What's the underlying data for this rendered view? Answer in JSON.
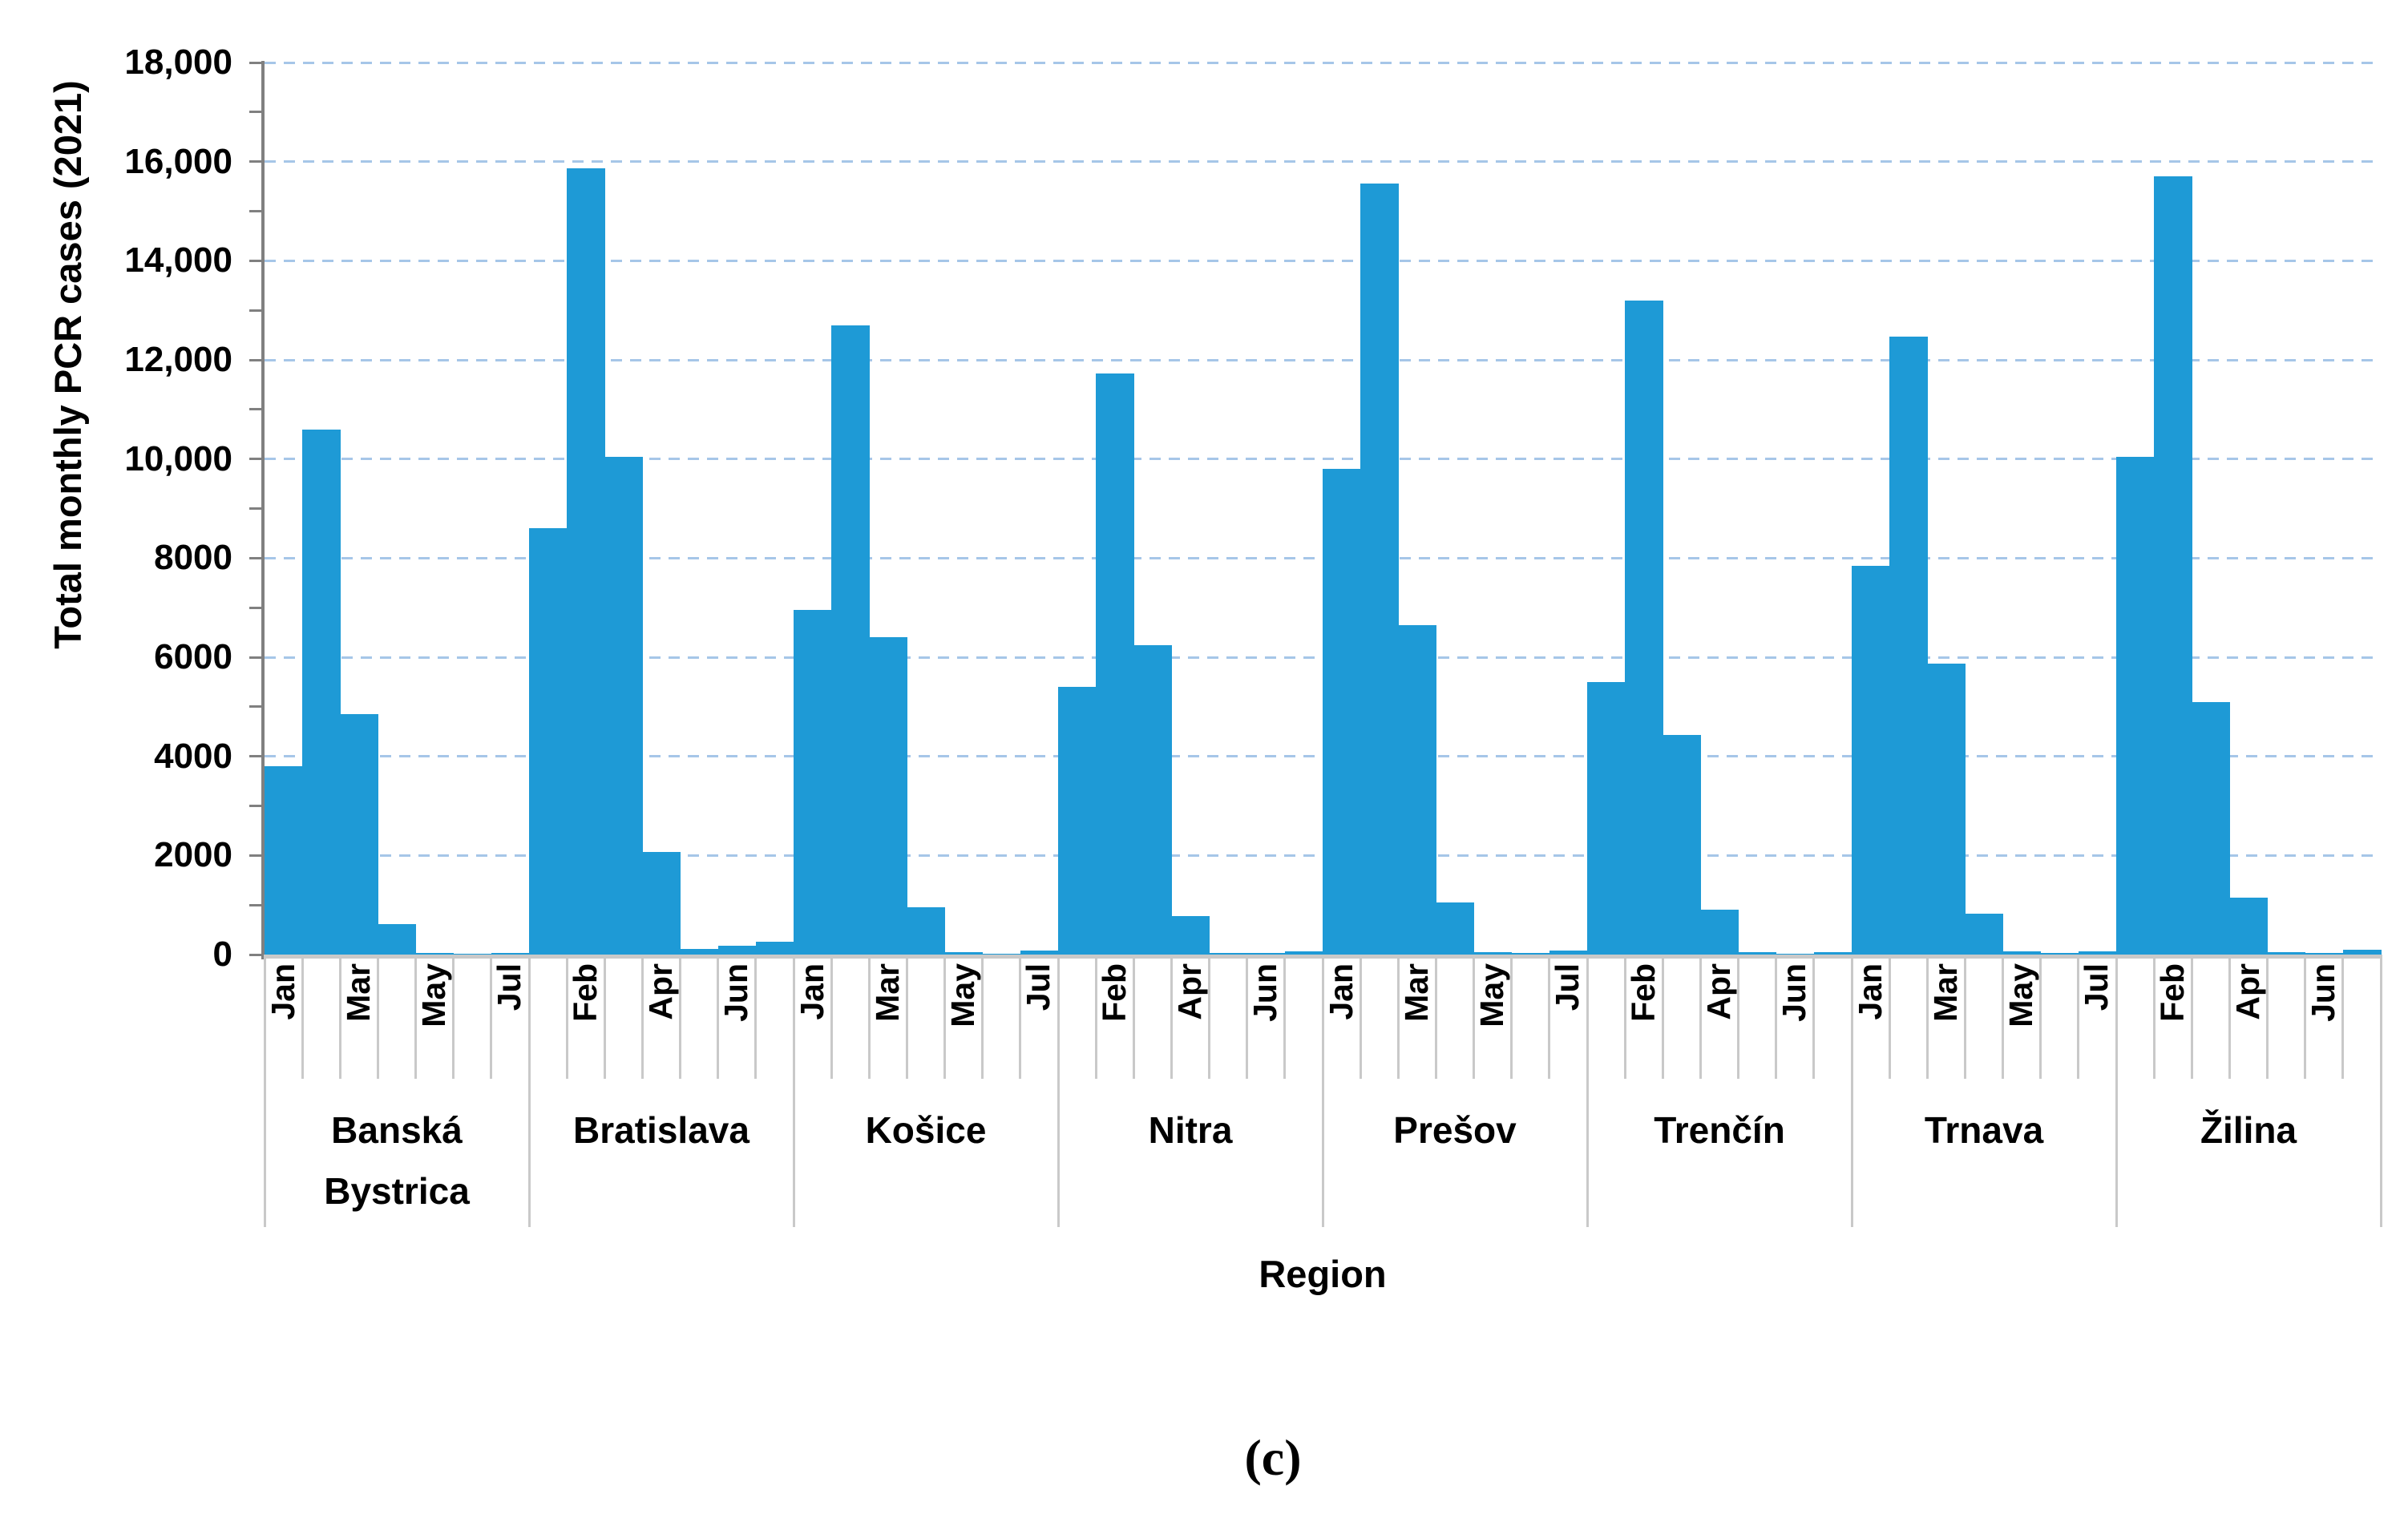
{
  "chart_data": {
    "type": "bar",
    "title": "",
    "ylabel": "Total monthly PCR cases (2021)",
    "xlabel": "Region",
    "caption": "(c)",
    "ylim": [
      0,
      18000
    ],
    "grid_step": 2000,
    "grid_on": true,
    "legend": "none",
    "y_tick_labels": [
      "0",
      "2000",
      "4000",
      "6000",
      "8000",
      "10,000",
      "12,000",
      "14,000",
      "16,000",
      "18,000"
    ],
    "months": [
      "Jan",
      "Feb",
      "Mar",
      "Apr",
      "May",
      "Jun",
      "Jul"
    ],
    "month_label_rule": "every other bar across whole axis, starting at first bar",
    "categories": [
      "Banská Bystrica",
      "Bratislava",
      "Košice",
      "Nitra",
      "Prešov",
      "Trenčín",
      "Trnava",
      "Žilina"
    ],
    "series": [
      {
        "name": "Banská Bystrica",
        "values": [
          3800,
          10600,
          4850,
          620,
          30,
          10,
          40
        ]
      },
      {
        "name": "Bratislava",
        "values": [
          8600,
          15870,
          10050,
          2070,
          120,
          180,
          260
        ]
      },
      {
        "name": "Košice",
        "values": [
          6950,
          12700,
          6400,
          950,
          50,
          20,
          80
        ]
      },
      {
        "name": "Nitra",
        "values": [
          5400,
          11730,
          6250,
          780,
          40,
          25,
          60
        ]
      },
      {
        "name": "Prešov",
        "values": [
          9800,
          15560,
          6650,
          1050,
          50,
          25,
          80
        ]
      },
      {
        "name": "Trenčín",
        "values": [
          5500,
          13190,
          4430,
          900,
          45,
          15,
          55
        ]
      },
      {
        "name": "Trnava",
        "values": [
          7840,
          12470,
          5870,
          830,
          65,
          25,
          70
        ]
      },
      {
        "name": "Žilina",
        "values": [
          10050,
          15710,
          5100,
          1150,
          50,
          30,
          90
        ]
      }
    ],
    "colors": {
      "bar": "#1e9ad6",
      "gridline": "#a6c6e8",
      "value_axis": "#808080",
      "category_axis": "#c9c9c9",
      "text": "#000000"
    }
  }
}
